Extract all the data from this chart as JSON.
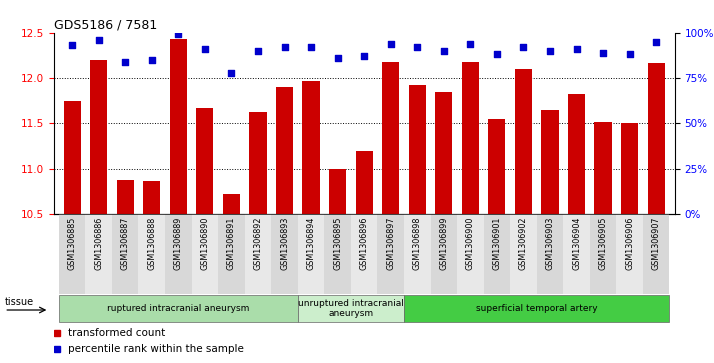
{
  "title": "GDS5186 / 7581",
  "samples": [
    "GSM1306885",
    "GSM1306886",
    "GSM1306887",
    "GSM1306888",
    "GSM1306889",
    "GSM1306890",
    "GSM1306891",
    "GSM1306892",
    "GSM1306893",
    "GSM1306894",
    "GSM1306895",
    "GSM1306896",
    "GSM1306897",
    "GSM1306898",
    "GSM1306899",
    "GSM1306900",
    "GSM1306901",
    "GSM1306902",
    "GSM1306903",
    "GSM1306904",
    "GSM1306905",
    "GSM1306906",
    "GSM1306907"
  ],
  "bar_values": [
    11.75,
    12.2,
    10.88,
    10.87,
    12.43,
    11.67,
    10.72,
    11.63,
    11.9,
    11.97,
    11.0,
    11.2,
    12.18,
    11.92,
    11.85,
    12.18,
    11.55,
    12.1,
    11.65,
    11.82,
    11.52,
    11.5,
    12.17
  ],
  "dot_values": [
    93,
    96,
    84,
    85,
    99,
    91,
    78,
    90,
    92,
    92,
    86,
    87,
    94,
    92,
    90,
    94,
    88,
    92,
    90,
    91,
    89,
    88,
    95
  ],
  "ylim_left": [
    10.5,
    12.5
  ],
  "ylim_right": [
    0,
    100
  ],
  "yticks_left": [
    10.5,
    11.0,
    11.5,
    12.0,
    12.5
  ],
  "yticks_right": [
    0,
    25,
    50,
    75,
    100
  ],
  "ytick_labels_right": [
    "0%",
    "25%",
    "50%",
    "75%",
    "100%"
  ],
  "bar_color": "#cc0000",
  "dot_color": "#0000cc",
  "bar_bottom": 10.5,
  "group_configs": [
    {
      "label": "ruptured intracranial aneurysm",
      "start": 0,
      "end": 8,
      "color": "#aaddaa"
    },
    {
      "label": "unruptured intracranial\naneurysm",
      "start": 9,
      "end": 12,
      "color": "#cceecc"
    },
    {
      "label": "superficial temporal artery",
      "start": 13,
      "end": 22,
      "color": "#44cc44"
    }
  ],
  "tissue_label": "tissue",
  "legend_bar_label": "transformed count",
  "legend_dot_label": "percentile rank within the sample",
  "plot_bg": "#ffffff",
  "dotted_lines": [
    11.0,
    11.5,
    12.0
  ]
}
